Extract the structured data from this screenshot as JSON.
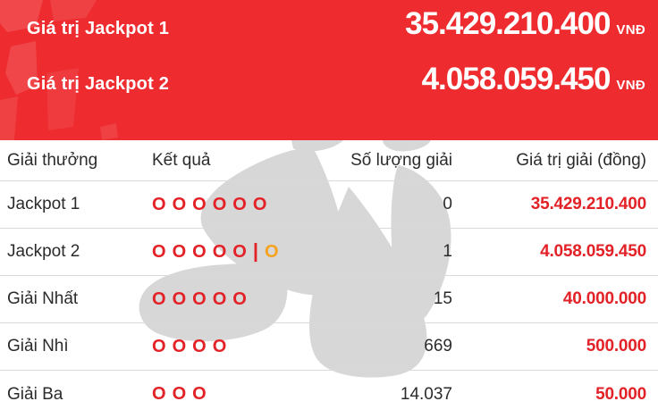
{
  "banner": {
    "jackpots": [
      {
        "label": "Giá trị Jackpot 1",
        "value": "35.429.210.400",
        "currency": "VNĐ"
      },
      {
        "label": "Giá trị Jackpot 2",
        "value": "4.058.059.450",
        "currency": "VNĐ"
      }
    ]
  },
  "table": {
    "headers": {
      "prize": "Giải thưởng",
      "result": "Kết quả",
      "count": "Số lượng giải",
      "value": "Giá trị giải (đồng)"
    },
    "result_glyph": "O",
    "separator_glyph": "|",
    "rows": [
      {
        "prize": "Jackpot 1",
        "result_main": 6,
        "result_bonus": 0,
        "count": "0",
        "value": "35.429.210.400"
      },
      {
        "prize": "Jackpot 2",
        "result_main": 5,
        "result_bonus": 1,
        "count": "1",
        "value": "4.058.059.450"
      },
      {
        "prize": "Giải Nhất",
        "result_main": 5,
        "result_bonus": 0,
        "count": "15",
        "value": "40.000.000"
      },
      {
        "prize": "Giải Nhì",
        "result_main": 4,
        "result_bonus": 0,
        "count": "669",
        "value": "500.000"
      },
      {
        "prize": "Giải Ba",
        "result_main": 3,
        "result_bonus": 0,
        "count": "14.037",
        "value": "50.000"
      }
    ]
  },
  "colors": {
    "banner_red": "#ee2b2e",
    "accent_red": "#e32227",
    "bonus_orange": "#f6a21f",
    "text_dark": "#2b2b2b",
    "separator_gray": "#d9d9d9",
    "watermark_gray": "#d7d7d7"
  },
  "watermark": {
    "name": "vietlott-star-logo"
  }
}
